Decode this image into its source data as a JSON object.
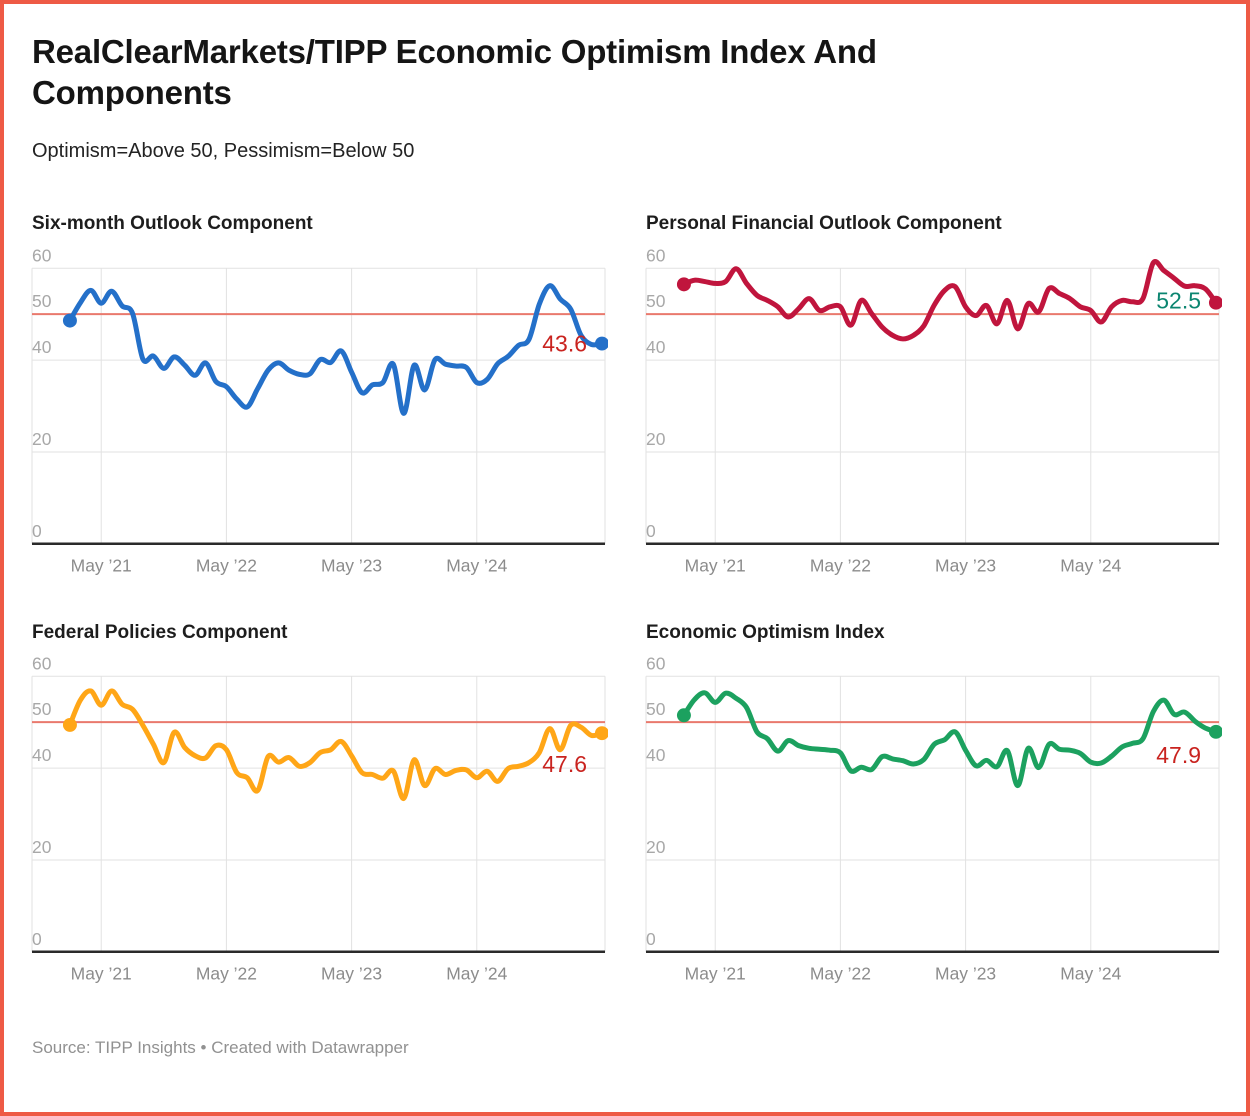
{
  "page": {
    "title": "RealClearMarkets/TIPP Economic Optimism Index And Components",
    "subtitle": "Optimism=Above 50, Pessimism=Below 50",
    "source": "Source: TIPP Insights • Created with Datawrapper",
    "background_color": "#ffffff",
    "border_color": "#ee5a45",
    "text_color": "#1d1d1d"
  },
  "axis_style": {
    "y_tick_color": "#a8a8a8",
    "x_tick_color": "#8c8c8c",
    "gridline_color": "#e2e2e2",
    "zero_line_color": "#2a2a2a",
    "reference_line_color": "#e9796d"
  },
  "chart_data": [
    {
      "type": "line",
      "title": "Six-month Outlook Component",
      "color": "#2470c9",
      "end_label": "43.6",
      "end_label_color": "#c9231f",
      "reference_line": 50,
      "y_ticks": [
        0,
        20,
        40,
        50,
        60
      ],
      "ylim": [
        0,
        62
      ],
      "x_tick_labels": [
        "May ’21",
        "May ’22",
        "May ’23",
        "May ’24"
      ],
      "x_tick_indices": [
        3,
        15,
        27,
        39
      ],
      "x_range_note": "monthly, Feb 2021 - May 2025",
      "grid": true,
      "legend": "none",
      "values": [
        48.6,
        52.5,
        55.2,
        52.4,
        55.0,
        51.8,
        50.2,
        40.2,
        40.9,
        38.2,
        40.7,
        38.9,
        36.7,
        39.4,
        35.3,
        34.2,
        31.5,
        29.8,
        33.8,
        37.8,
        39.4,
        37.8,
        36.9,
        37.0,
        40.1,
        39.5,
        42.0,
        37.4,
        32.9,
        34.6,
        35.1,
        39.1,
        28.4,
        38.9,
        33.5,
        40.1,
        39.1,
        38.7,
        38.4,
        35.1,
        35.8,
        39.2,
        40.8,
        43.2,
        44.5,
        52.2,
        56.2,
        53.3,
        51.1,
        45.4,
        43.4,
        43.6
      ]
    },
    {
      "type": "line",
      "title": "Personal Financial Outlook Component",
      "color": "#c0153d",
      "end_label": "52.5",
      "end_label_color": "#0b8570",
      "reference_line": 50,
      "y_ticks": [
        0,
        20,
        40,
        50,
        60
      ],
      "ylim": [
        0,
        62
      ],
      "x_tick_labels": [
        "May ’21",
        "May ’22",
        "May ’23",
        "May ’24"
      ],
      "x_tick_indices": [
        3,
        15,
        27,
        39
      ],
      "x_range_note": "monthly, Feb 2021 - May 2025",
      "grid": true,
      "legend": "none",
      "values": [
        56.5,
        57.4,
        57.1,
        56.7,
        57.1,
        59.9,
        56.7,
        54.1,
        53.0,
        51.6,
        49.4,
        51.2,
        53.4,
        50.8,
        51.6,
        51.6,
        47.6,
        53.0,
        50.1,
        47.2,
        45.4,
        44.6,
        45.4,
        47.5,
        52.0,
        55.2,
        56.0,
        51.6,
        49.7,
        51.9,
        47.9,
        53.0,
        46.8,
        52.3,
        50.5,
        55.6,
        54.5,
        53.4,
        51.6,
        50.8,
        48.3,
        51.6,
        53.0,
        52.7,
        53.4,
        61.2,
        59.5,
        57.8,
        56.1,
        56.2,
        55.5,
        52.5
      ]
    },
    {
      "type": "line",
      "title": "Federal Policies Component",
      "color": "#ffa617",
      "end_label": "47.6",
      "end_label_color": "#c9231f",
      "reference_line": 50,
      "y_ticks": [
        0,
        20,
        40,
        50,
        60
      ],
      "ylim": [
        0,
        62
      ],
      "x_tick_labels": [
        "May ’21",
        "May ’22",
        "May ’23",
        "May ’24"
      ],
      "x_tick_indices": [
        3,
        15,
        27,
        39
      ],
      "x_range_note": "monthly, Feb 2021 - May 2025",
      "grid": true,
      "legend": "none",
      "values": [
        49.4,
        54.8,
        56.8,
        53.7,
        56.8,
        53.9,
        52.8,
        49.3,
        45.2,
        41.2,
        47.8,
        44.5,
        42.7,
        42.2,
        44.9,
        44.0,
        39.0,
        37.9,
        35.1,
        42.5,
        41.3,
        42.3,
        40.4,
        41.2,
        43.4,
        44.0,
        45.8,
        42.7,
        39.0,
        38.6,
        37.8,
        39.4,
        33.4,
        41.8,
        36.2,
        39.9,
        38.6,
        39.5,
        39.6,
        37.9,
        39.3,
        37.1,
        39.9,
        40.4,
        41.2,
        43.4,
        48.6,
        44.0,
        49.3,
        48.9,
        47.1,
        47.6
      ]
    },
    {
      "type": "line",
      "title": "Economic Optimism Index",
      "color": "#1ca15f",
      "end_label": "47.9",
      "end_label_color": "#c9231f",
      "reference_line": 50,
      "y_ticks": [
        0,
        20,
        40,
        50,
        60
      ],
      "ylim": [
        0,
        62
      ],
      "x_tick_labels": [
        "May ’21",
        "May ’22",
        "May ’23",
        "May ’24"
      ],
      "x_tick_indices": [
        3,
        15,
        27,
        39
      ],
      "x_range_note": "monthly, Feb 2021 - May 2025",
      "grid": true,
      "legend": "none",
      "values": [
        51.5,
        54.9,
        56.4,
        54.3,
        56.3,
        55.2,
        53.2,
        47.9,
        46.4,
        43.7,
        46.0,
        44.9,
        44.3,
        44.1,
        43.9,
        43.3,
        39.4,
        40.2,
        39.7,
        42.5,
        42.0,
        41.6,
        40.9,
        41.9,
        45.2,
        46.2,
        47.9,
        43.9,
        40.5,
        41.7,
        40.3,
        43.8,
        36.2,
        44.3,
        40.1,
        45.2,
        44.1,
        43.9,
        43.2,
        41.3,
        41.1,
        42.6,
        44.6,
        45.4,
        46.4,
        52.3,
        54.8,
        51.7,
        52.2,
        50.2,
        48.7,
        47.9
      ]
    }
  ]
}
